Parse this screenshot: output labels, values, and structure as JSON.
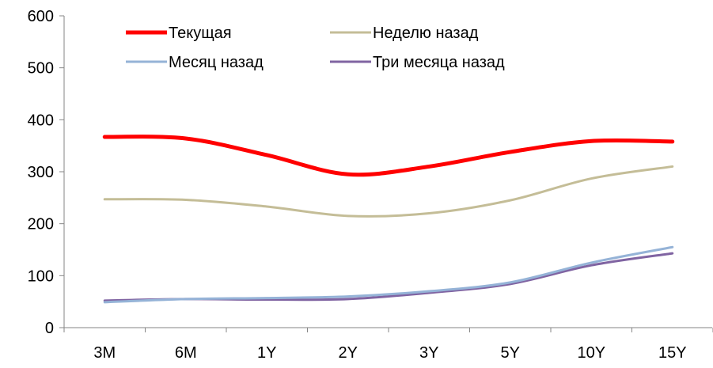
{
  "chart_data": {
    "type": "line",
    "title": "",
    "xlabel": "",
    "ylabel": "",
    "categories": [
      "3M",
      "6M",
      "1Y",
      "2Y",
      "3Y",
      "5Y",
      "10Y",
      "15Y"
    ],
    "ylim": [
      0,
      600
    ],
    "yticks": [
      0,
      100,
      200,
      300,
      400,
      500,
      600
    ],
    "grid": false,
    "legend_position": "top",
    "series": [
      {
        "name": "Текущая",
        "color": "#ff0000",
        "values": [
          367,
          364,
          332,
          295,
          310,
          338,
          359,
          358
        ]
      },
      {
        "name": "Неделю назад",
        "color": "#c4bd97",
        "values": [
          247,
          246,
          233,
          215,
          220,
          245,
          287,
          310
        ]
      },
      {
        "name": "Месяц назад",
        "color": "#95b3d7",
        "values": [
          49,
          55,
          57,
          60,
          70,
          87,
          125,
          155
        ]
      },
      {
        "name": "Три месяца назад",
        "color": "#8064a2",
        "values": [
          52,
          55,
          54,
          55,
          67,
          84,
          120,
          143
        ]
      }
    ]
  }
}
